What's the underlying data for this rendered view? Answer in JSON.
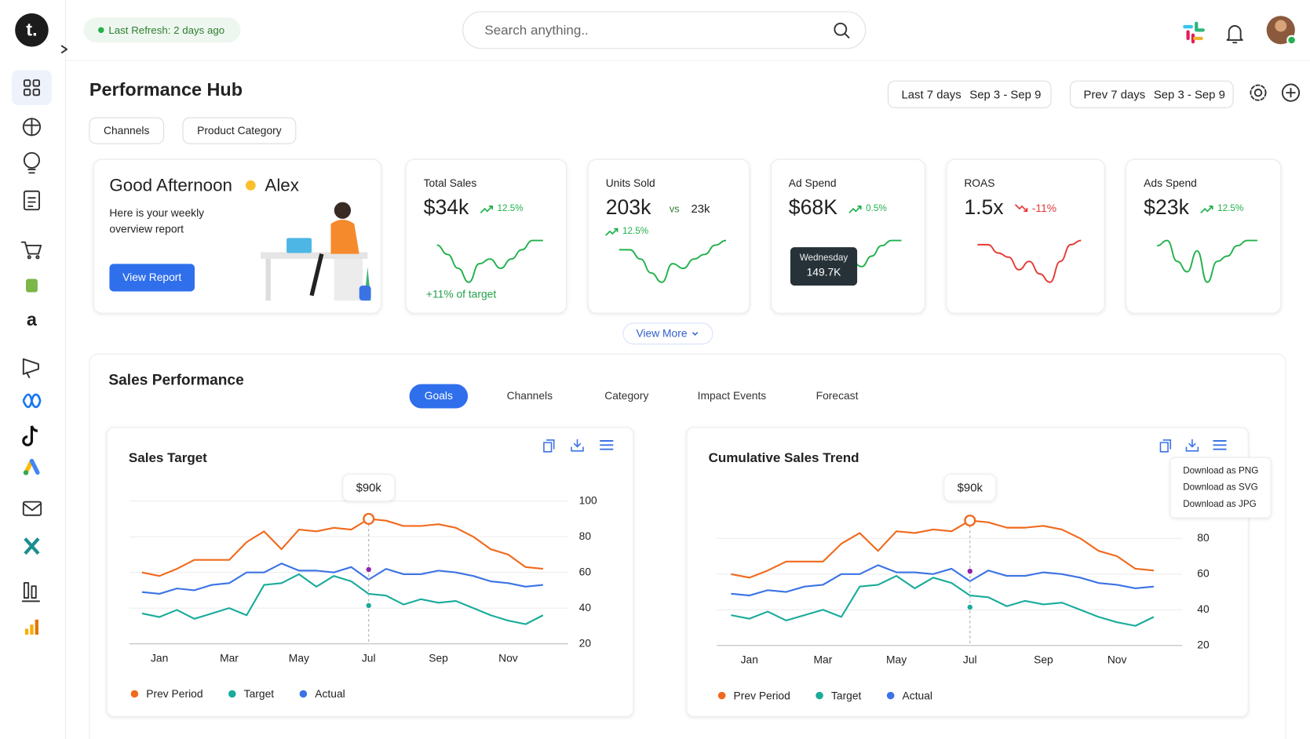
{
  "header": {
    "logo": "t.",
    "refresh": "Last Refresh: 2 days ago",
    "search_placeholder": "Search anything.."
  },
  "page": {
    "title": "Performance Hub",
    "filters": [
      "Channels",
      "Product Category"
    ],
    "ranges": [
      {
        "label": "Last 7 days",
        "dates": "Sep 3 - Sep 9"
      },
      {
        "label": "Prev 7 days",
        "dates": "Sep 3 - Sep 9"
      }
    ]
  },
  "welcome": {
    "greeting": "Good Afternoon",
    "name": "Alex",
    "text": [
      "Here is your weekly",
      "overview report"
    ],
    "button": "View Report"
  },
  "kpis": [
    {
      "title": "Total Sales",
      "value": "$34k",
      "change": "12.5%",
      "trend": "up",
      "color": "#22b14c",
      "note": "+11% of target",
      "spark": [
        8,
        6,
        3,
        0,
        4,
        5,
        3,
        5,
        7,
        9,
        9
      ]
    },
    {
      "title": "Units Sold",
      "value": "203k",
      "compare_word": "vs",
      "compare": "23k",
      "change": "12.5%",
      "trend": "up",
      "color": "#22b14c",
      "spark": [
        7,
        7,
        5,
        2,
        0,
        4,
        3,
        5,
        6,
        8,
        9
      ]
    },
    {
      "title": "Ad Spend",
      "value": "$68K",
      "change": "0.5%",
      "trend": "up",
      "color": "#22b14c",
      "spark": [
        8,
        6,
        4,
        2,
        3,
        6,
        5,
        7,
        9,
        10,
        10
      ],
      "tooltip": {
        "label": "Wednesday",
        "value": "149.7K"
      }
    },
    {
      "title": "ROAS",
      "value": "1.5x",
      "change": "-11%",
      "trend": "down",
      "color": "#e53935",
      "spark": [
        9,
        9,
        7,
        6,
        3,
        5,
        2,
        0,
        5,
        9,
        10
      ]
    },
    {
      "title": "Ads Spend",
      "value": "$23k",
      "change": "12.5%",
      "trend": "up",
      "color": "#22b14c",
      "spark": [
        7,
        8,
        4,
        2,
        6,
        0,
        4,
        5,
        7,
        8,
        8
      ]
    }
  ],
  "view_more": "View More",
  "sales": {
    "title": "Sales Performance",
    "tabs": [
      "Goals",
      "Channels",
      "Category",
      "Impact Events",
      "Forecast"
    ],
    "active_tab": 0
  },
  "menu": [
    "Download as PNG",
    "Download as SVG",
    "Download as JPG"
  ],
  "chart_data": [
    {
      "type": "line",
      "title": "Sales Target",
      "categories": [
        null,
        "Jan",
        null,
        null,
        null,
        "Mar",
        null,
        null,
        null,
        "May",
        null,
        null,
        null,
        "Jul",
        null,
        null,
        null,
        "Sep",
        null,
        null,
        null,
        "Nov",
        null,
        null
      ],
      "series": [
        {
          "name": "Prev Period",
          "color": "#f06a1d",
          "values": [
            60,
            58,
            62,
            67,
            67,
            67,
            77,
            83,
            73,
            84,
            83,
            85,
            84,
            90,
            89,
            86,
            86,
            87,
            85,
            80,
            73,
            70,
            63,
            62
          ]
        },
        {
          "name": "Target",
          "color": "#1aab9b",
          "values": [
            37,
            35,
            39,
            34,
            37,
            40,
            36,
            53,
            54,
            59,
            52,
            58,
            55,
            48,
            47,
            42,
            45,
            43,
            44,
            40,
            36,
            33,
            31,
            36
          ]
        },
        {
          "name": "Actual",
          "color": "#3b73e6",
          "values": [
            49,
            48,
            51,
            50,
            53,
            54,
            60,
            60,
            65,
            61,
            61,
            60,
            63,
            56,
            62,
            59,
            59,
            61,
            60,
            58,
            55,
            54,
            52,
            53
          ]
        }
      ],
      "ylim": [
        20,
        100
      ],
      "yticks": [
        20,
        40,
        60,
        80,
        100
      ],
      "grid": true,
      "annotation": {
        "label": "$90k",
        "category": "Jul"
      }
    },
    {
      "type": "line",
      "title": "Cumulative Sales Trend",
      "categories": [
        null,
        "Jan",
        null,
        null,
        null,
        "Mar",
        null,
        null,
        null,
        "May",
        null,
        null,
        null,
        "Jul",
        null,
        null,
        null,
        "Sep",
        null,
        null,
        null,
        "Nov",
        null,
        null
      ],
      "series": [
        {
          "name": "Prev Period",
          "color": "#f06a1d",
          "values": [
            60,
            58,
            62,
            67,
            67,
            67,
            77,
            83,
            73,
            84,
            83,
            85,
            84,
            90,
            89,
            86,
            86,
            87,
            85,
            80,
            73,
            70,
            63,
            62
          ]
        },
        {
          "name": "Target",
          "color": "#1aab9b",
          "values": [
            37,
            35,
            39,
            34,
            37,
            40,
            36,
            53,
            54,
            59,
            52,
            58,
            55,
            48,
            47,
            42,
            45,
            43,
            44,
            40,
            36,
            33,
            31,
            36
          ]
        },
        {
          "name": "Actual",
          "color": "#3b73e6",
          "values": [
            49,
            48,
            51,
            50,
            53,
            54,
            60,
            60,
            65,
            61,
            61,
            60,
            63,
            56,
            62,
            59,
            59,
            61,
            60,
            58,
            55,
            54,
            52,
            53
          ]
        }
      ],
      "ylim": [
        20,
        100
      ],
      "yticks": [
        20,
        40,
        60,
        80
      ],
      "grid": true,
      "annotation": {
        "label": "$90k",
        "category": "Jul"
      }
    }
  ]
}
